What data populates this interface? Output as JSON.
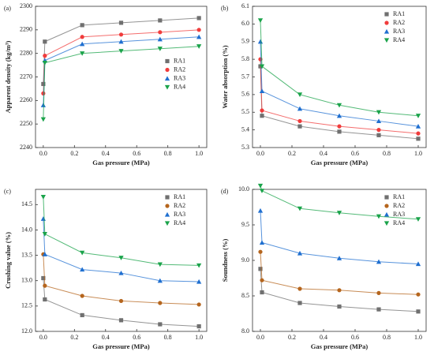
{
  "chart_data": [
    {
      "type": "scatter",
      "panel": "(a)",
      "xlabel": "Gas pressure (MPa)",
      "ylabel": "Apparent density (kg/m³)",
      "x": [
        0,
        0.01,
        0.25,
        0.5,
        0.75,
        1.0
      ],
      "xlim": [
        -0.05,
        1.05
      ],
      "xticks": [
        {
          "value": 0,
          "label": "0.0"
        },
        0.2,
        0.4,
        0.6,
        0.8,
        {
          "value": 1,
          "label": "1.0"
        }
      ],
      "ylim": [
        2240,
        2300
      ],
      "yticks": [
        2240,
        2250,
        2260,
        2270,
        2280,
        2290,
        2300
      ],
      "legend": "right",
      "series": [
        {
          "name": "RA1",
          "color": "#707070",
          "marker": "square",
          "values": [
            2267,
            2285,
            2292,
            2293,
            2294,
            2295
          ]
        },
        {
          "name": "RA2",
          "color": "#f03c3c",
          "marker": "circle",
          "values": [
            2263,
            2279,
            2287,
            2288,
            2289,
            2290
          ]
        },
        {
          "name": "RA3",
          "color": "#1f6fd0",
          "marker": "triangle-up",
          "values": [
            2258,
            2277,
            2284,
            2285,
            2286,
            2287
          ]
        },
        {
          "name": "RA4",
          "color": "#1aa34a",
          "marker": "triangle-down",
          "values": [
            2252,
            2276,
            2280,
            2281,
            2282,
            2283
          ]
        }
      ]
    },
    {
      "type": "scatter",
      "panel": "(b)",
      "xlabel": "Gas pressure (MPa)",
      "ylabel": "Water absorption (%)",
      "x": [
        0,
        0.01,
        0.25,
        0.5,
        0.75,
        1.0
      ],
      "xlim": [
        -0.05,
        1.05
      ],
      "xticks": [
        {
          "value": 0,
          "label": "0.0"
        },
        0.2,
        0.4,
        0.6,
        0.8,
        {
          "value": 1,
          "label": "1.0"
        }
      ],
      "ylim": [
        5.3,
        6.1
      ],
      "yticks": [
        5.3,
        5.4,
        5.5,
        5.6,
        5.7,
        5.8,
        5.9,
        {
          "value": 6,
          "label": "6.0"
        },
        6.1
      ],
      "legend": "upper right",
      "series": [
        {
          "name": "RA1",
          "color": "#707070",
          "marker": "square",
          "values": [
            5.76,
            5.48,
            5.42,
            5.39,
            5.37,
            5.35
          ]
        },
        {
          "name": "RA2",
          "color": "#f03c3c",
          "marker": "circle",
          "values": [
            5.8,
            5.51,
            5.45,
            5.42,
            5.4,
            5.38
          ]
        },
        {
          "name": "RA3",
          "color": "#1f6fd0",
          "marker": "triangle-up",
          "values": [
            5.9,
            5.62,
            5.52,
            5.48,
            5.45,
            5.42
          ]
        },
        {
          "name": "RA4",
          "color": "#1aa34a",
          "marker": "triangle-down",
          "values": [
            6.02,
            5.76,
            5.6,
            5.54,
            5.5,
            5.48
          ]
        }
      ]
    },
    {
      "type": "scatter",
      "panel": "(c)",
      "xlabel": "Gas pressure (MPa)",
      "ylabel": "Crushing value (%)",
      "x": [
        0,
        0.01,
        0.25,
        0.5,
        0.75,
        1.0
      ],
      "xlim": [
        -0.05,
        1.05
      ],
      "xticks": [
        {
          "value": 0,
          "label": "0.0"
        },
        0.2,
        0.4,
        0.6,
        0.8,
        {
          "value": 1,
          "label": "1.0"
        }
      ],
      "ylim": [
        12,
        14.8
      ],
      "yticks": [
        {
          "value": 12,
          "label": "12.0"
        },
        12.5,
        {
          "value": 13,
          "label": "13.0"
        },
        13.5,
        {
          "value": 14,
          "label": "14.0"
        },
        14.5
      ],
      "legend": "upper right",
      "series": [
        {
          "name": "RA1",
          "color": "#707070",
          "marker": "square",
          "values": [
            13.05,
            12.63,
            12.32,
            12.22,
            12.14,
            12.1
          ]
        },
        {
          "name": "RA2",
          "color": "#b5651d",
          "marker": "circle",
          "values": [
            13.52,
            12.9,
            12.7,
            12.6,
            12.56,
            12.53
          ]
        },
        {
          "name": "RA3",
          "color": "#1f6fd0",
          "marker": "triangle-up",
          "values": [
            14.22,
            13.52,
            13.22,
            13.15,
            13.0,
            12.98
          ]
        },
        {
          "name": "RA4",
          "color": "#1aa34a",
          "marker": "triangle-down",
          "values": [
            14.65,
            13.92,
            13.55,
            13.45,
            13.32,
            13.3
          ]
        }
      ]
    },
    {
      "type": "scatter",
      "panel": "(d)",
      "xlabel": "Gas pressure (MPa)",
      "ylabel": "Soundness (%)",
      "x": [
        0,
        0.01,
        0.25,
        0.5,
        0.75,
        1.0
      ],
      "xlim": [
        -0.05,
        1.05
      ],
      "xticks": [
        {
          "value": 0,
          "label": "0.0"
        },
        0.2,
        0.4,
        0.6,
        0.8,
        {
          "value": 1,
          "label": "1.0"
        }
      ],
      "ylim": [
        8,
        10
      ],
      "yticks": [
        {
          "value": 8,
          "label": "8.0"
        },
        8.5,
        {
          "value": 9,
          "label": "9.0"
        },
        9.5,
        {
          "value": 10,
          "label": "10.0"
        }
      ],
      "legend": "upper right",
      "series": [
        {
          "name": "RA1",
          "color": "#707070",
          "marker": "square",
          "values": [
            8.88,
            8.55,
            8.4,
            8.35,
            8.31,
            8.28
          ]
        },
        {
          "name": "RA2",
          "color": "#b5651d",
          "marker": "circle",
          "values": [
            9.12,
            8.72,
            8.6,
            8.58,
            8.54,
            8.52
          ]
        },
        {
          "name": "RA3",
          "color": "#1f6fd0",
          "marker": "triangle-up",
          "values": [
            9.7,
            9.25,
            9.1,
            9.03,
            8.98,
            8.95
          ]
        },
        {
          "name": "RA4",
          "color": "#1aa34a",
          "marker": "triangle-down",
          "values": [
            10.05,
            9.98,
            9.73,
            9.67,
            9.62,
            9.58
          ]
        }
      ]
    }
  ]
}
